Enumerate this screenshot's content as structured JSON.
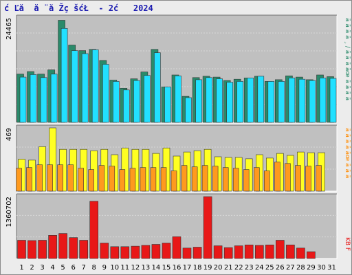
{
  "title": "ć Ľă  ă ¨ă Žç šćŁ  - 2ć   2024",
  "colors": {
    "panel_bg": "#c0c0c0",
    "pages_dark": "#2a8a6a",
    "pages_light": "#22e0ff",
    "hits_yellow": "#ffff22",
    "hits_orange": "#ff9a1e",
    "bytes_red": "#e81818",
    "day_weekday": "#000000",
    "day_weekend": "#1a7a5a",
    "right_legend_green": "#2a8a6a",
    "right_legend_blue": "#1a6aff",
    "right_legend_cyan": "#00c8ff",
    "right_legend_orange": "#ff8a00",
    "right_legend_red": "#e81818"
  },
  "right_labels": {
    "top": "ă ă ă ă ¸ / ă ă ă ăœ ă ă ă ă",
    "middle": "ă ă ă ă ăœ ă ă ă",
    "bottom": "KB F"
  },
  "chart_data": [
    {
      "type": "bar",
      "panel": "top",
      "ylabel": "24465",
      "ylim": [
        0,
        24465
      ],
      "categories": [
        "1",
        "2",
        "3",
        "4",
        "5",
        "6",
        "7",
        "8",
        "9",
        "10",
        "11",
        "12",
        "13",
        "14",
        "15",
        "16",
        "17",
        "18",
        "19",
        "20",
        "21",
        "22",
        "23",
        "24",
        "25",
        "26",
        "27",
        "28",
        "29",
        "30",
        "31"
      ],
      "weekend_days": [
        "3",
        "4",
        "10",
        "11",
        "17",
        "18",
        "24",
        "25",
        "31"
      ],
      "series": [
        {
          "values": [
            11300,
            11900,
            11300,
            12300,
            23900,
            18100,
            16800,
            17100,
            14500,
            9900,
            8000,
            10200,
            11800,
            17100,
            8300,
            11100,
            6100,
            10500,
            10800,
            10600,
            9800,
            10100,
            10400,
            10800,
            9600,
            10000,
            10900,
            10600,
            10000,
            11100,
            10700
          ]
        },
        {
          "values": [
            10600,
            11200,
            10500,
            11300,
            22000,
            16800,
            16100,
            17000,
            13600,
            9600,
            7600,
            9800,
            11000,
            16300,
            8300,
            10900,
            5800,
            10000,
            10500,
            10200,
            9400,
            9600,
            10400,
            10800,
            9600,
            9600,
            10400,
            10100,
            9800,
            10400,
            10300
          ]
        }
      ]
    },
    {
      "type": "bar",
      "panel": "middle",
      "ylabel": "469",
      "ylim": [
        0,
        469
      ],
      "categories": [
        "1",
        "2",
        "3",
        "4",
        "5",
        "6",
        "7",
        "8",
        "9",
        "10",
        "11",
        "12",
        "13",
        "14",
        "15",
        "16",
        "17",
        "18",
        "19",
        "20",
        "21",
        "22",
        "23",
        "24",
        "25",
        "26",
        "27",
        "28",
        "29",
        "30",
        "31"
      ],
      "series": [
        {
          "values": [
            237,
            230,
            330,
            469,
            310,
            310,
            310,
            300,
            310,
            270,
            320,
            310,
            310,
            280,
            320,
            260,
            290,
            300,
            310,
            255,
            250,
            250,
            240,
            270,
            245,
            280,
            265,
            290,
            285,
            285,
            0
          ]
        },
        {
          "values": [
            170,
            175,
            195,
            195,
            195,
            195,
            170,
            160,
            190,
            185,
            160,
            170,
            175,
            175,
            175,
            150,
            190,
            180,
            190,
            185,
            175,
            170,
            160,
            175,
            150,
            215,
            205,
            190,
            185,
            190,
            0
          ]
        }
      ]
    },
    {
      "type": "bar",
      "panel": "bottom",
      "ylabel": "1360702",
      "ylim": [
        0,
        1360702
      ],
      "categories": [
        "1",
        "2",
        "3",
        "4",
        "5",
        "6",
        "7",
        "8",
        "9",
        "10",
        "11",
        "12",
        "13",
        "14",
        "15",
        "16",
        "17",
        "18",
        "19",
        "20",
        "21",
        "22",
        "23",
        "24",
        "25",
        "26",
        "27",
        "28",
        "29",
        "30",
        "31"
      ],
      "series": [
        {
          "values": [
            400000,
            395000,
            400000,
            510000,
            550000,
            460000,
            400000,
            1260000,
            340000,
            260000,
            260000,
            270000,
            290000,
            310000,
            340000,
            480000,
            230000,
            250000,
            1360702,
            280000,
            240000,
            280000,
            300000,
            290000,
            300000,
            400000,
            300000,
            230000,
            150000,
            0,
            0
          ]
        }
      ]
    }
  ]
}
